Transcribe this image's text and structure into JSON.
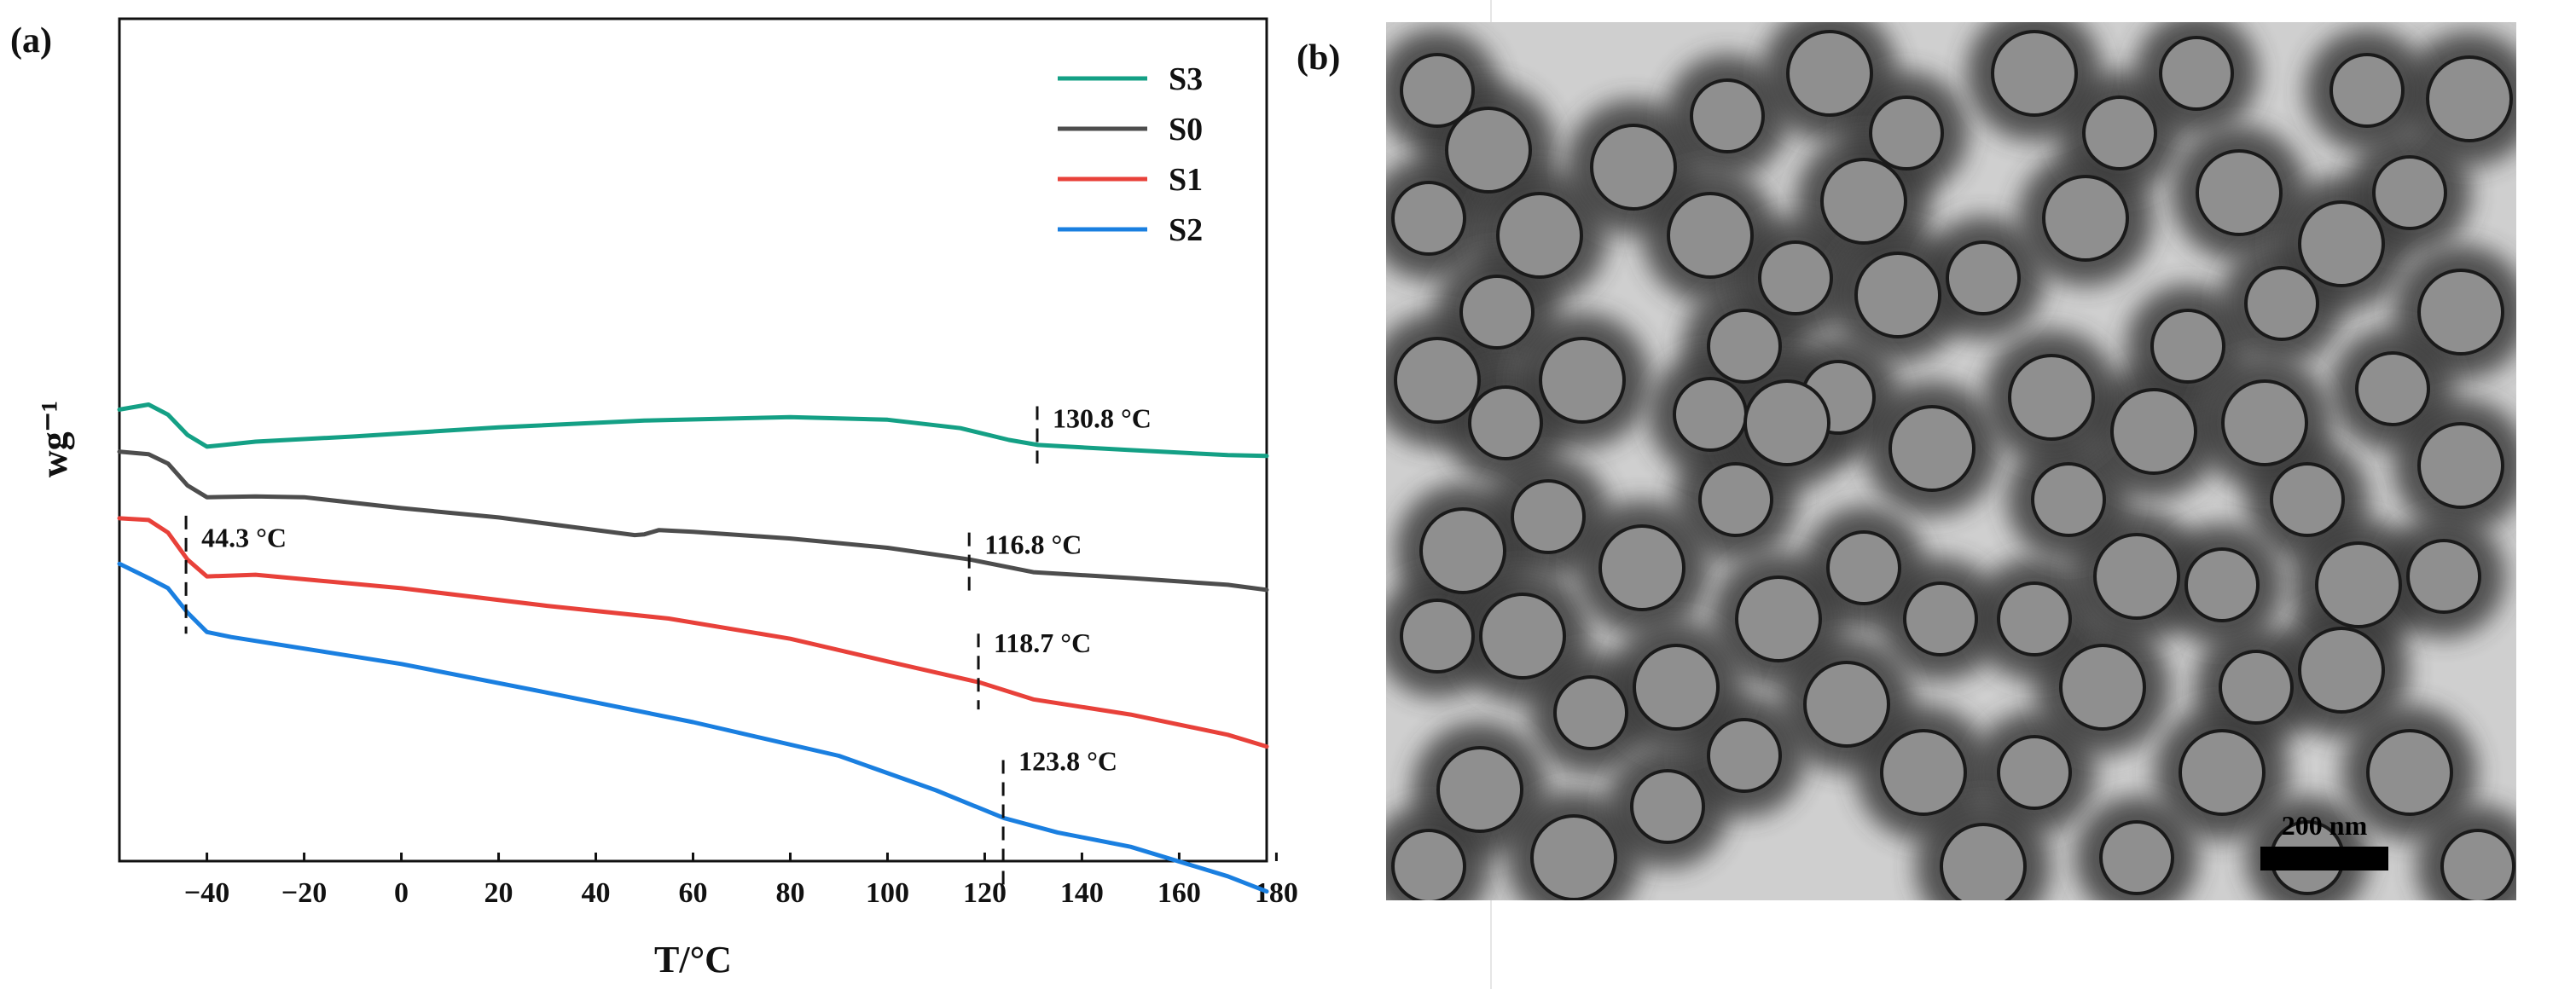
{
  "panels": {
    "a_label": "(a)",
    "b_label": "(b)"
  },
  "chart_data": {
    "type": "line",
    "title": "",
    "xlabel": "T/°C",
    "ylabel": "wg⁻¹",
    "xlim": [
      -58,
      178
    ],
    "ylim": [
      0,
      10
    ],
    "xticks": [
      -40,
      -20,
      0,
      20,
      40,
      60,
      80,
      100,
      120,
      140,
      160,
      180
    ],
    "legend_position": "top-right",
    "grid": false,
    "series": [
      {
        "name": "S3",
        "color": "#14a085",
        "x": [
          -58,
          -52,
          -48,
          -44,
          -40,
          -30,
          -10,
          20,
          50,
          80,
          100,
          115,
          125,
          131,
          150,
          170,
          178
        ],
        "y": [
          5.36,
          5.42,
          5.3,
          5.06,
          4.92,
          4.98,
          5.04,
          5.15,
          5.23,
          5.27,
          5.24,
          5.14,
          5.0,
          4.94,
          4.88,
          4.82,
          4.81
        ]
      },
      {
        "name": "S0",
        "color": "#4d4d4d",
        "x": [
          -58,
          -52,
          -48,
          -44,
          -40,
          -30,
          -20,
          0,
          20,
          48,
          50,
          53,
          60,
          80,
          100,
          117,
          130,
          150,
          170,
          178
        ],
        "y": [
          4.86,
          4.83,
          4.72,
          4.46,
          4.32,
          4.33,
          4.32,
          4.19,
          4.08,
          3.87,
          3.88,
          3.93,
          3.91,
          3.83,
          3.72,
          3.58,
          3.43,
          3.36,
          3.28,
          3.22
        ]
      },
      {
        "name": "S1",
        "color": "#e8413a",
        "x": [
          -58,
          -52,
          -48,
          -44,
          -40,
          -30,
          0,
          30,
          55,
          80,
          100,
          119,
          130,
          150,
          170,
          178
        ],
        "y": [
          4.07,
          4.05,
          3.9,
          3.58,
          3.38,
          3.4,
          3.24,
          3.03,
          2.88,
          2.64,
          2.37,
          2.12,
          1.92,
          1.74,
          1.5,
          1.36
        ]
      },
      {
        "name": "S2",
        "color": "#1a7fe0",
        "x": [
          -58,
          -52,
          -48,
          -44,
          -40,
          -35,
          0,
          30,
          60,
          90,
          110,
          124,
          135,
          150,
          170,
          178
        ],
        "y": [
          3.53,
          3.36,
          3.24,
          2.95,
          2.72,
          2.66,
          2.34,
          2.0,
          1.65,
          1.25,
          0.84,
          0.51,
          0.34,
          0.17,
          -0.18,
          -0.36
        ]
      }
    ],
    "annotations": [
      {
        "text": "44.3 °C",
        "x": -44.3
      },
      {
        "text": "130.8 °C",
        "x": 130.8
      },
      {
        "text": "116.8 °C",
        "x": 116.8
      },
      {
        "text": "118.7 °C",
        "x": 118.7
      },
      {
        "text": "123.8 °C",
        "x": 123.8
      }
    ]
  },
  "image_b": {
    "scale_bar": "200 nm"
  }
}
